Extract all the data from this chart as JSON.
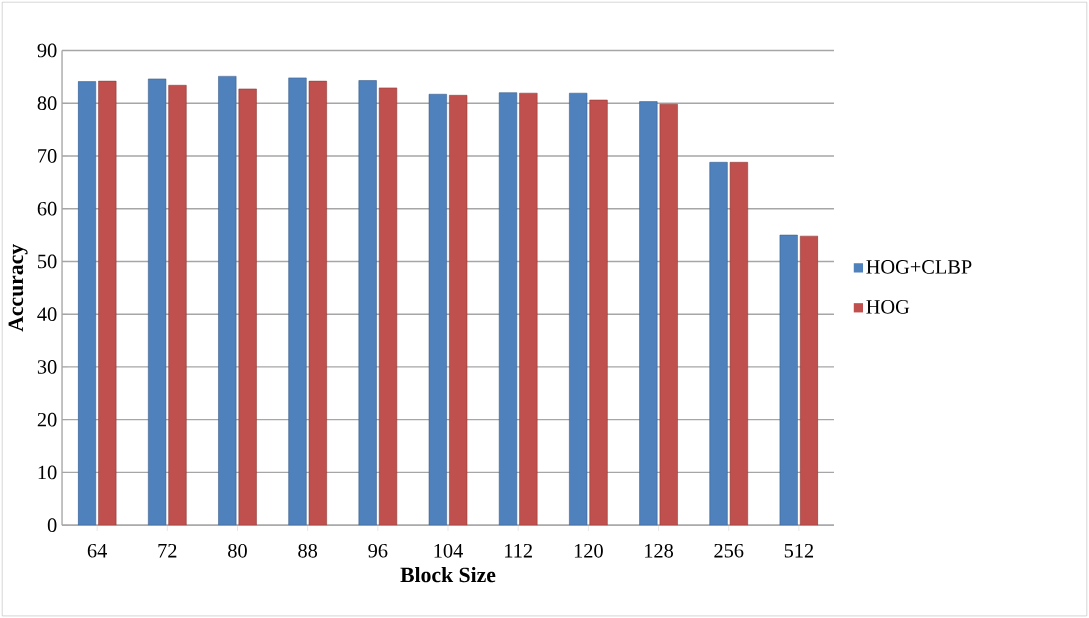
{
  "chart_data": {
    "type": "bar",
    "xlabel": "Block Size",
    "ylabel": "Accuracy",
    "categories": [
      "64",
      "72",
      "80",
      "88",
      "96",
      "104",
      "112",
      "120",
      "128",
      "256",
      "512"
    ],
    "series": [
      {
        "name": "HOG+CLBP",
        "color": "#4f81bd",
        "values": [
          84.1,
          84.6,
          85.1,
          84.8,
          84.3,
          81.7,
          82.0,
          81.9,
          80.3,
          68.8,
          55.0
        ]
      },
      {
        "name": "HOG",
        "color": "#c0504d",
        "values": [
          84.2,
          83.4,
          82.7,
          84.2,
          82.9,
          81.5,
          81.9,
          80.6,
          79.8,
          68.8,
          54.8
        ]
      }
    ],
    "ylim": [
      0,
      90
    ],
    "yticks": [
      0,
      10,
      20,
      30,
      40,
      50,
      60,
      70,
      80,
      90
    ],
    "grid": "y",
    "legend": "right"
  }
}
